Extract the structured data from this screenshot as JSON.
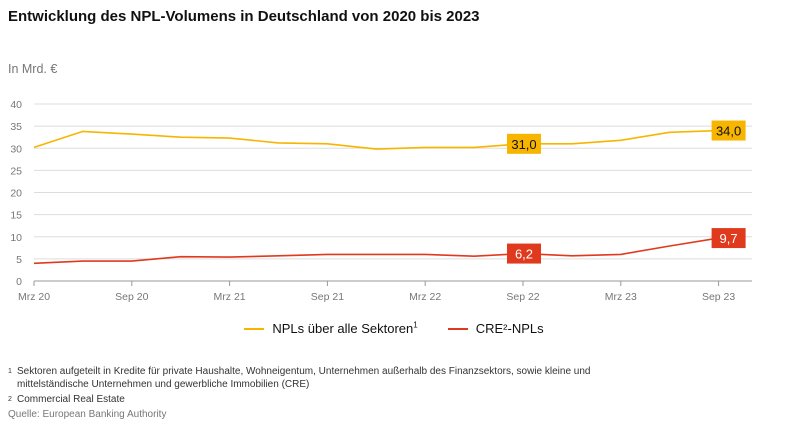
{
  "title": "Entwicklung des NPL-Volumens in Deutschland von 2020 bis 2023",
  "unit_label": "In Mrd. €",
  "colors": {
    "yellow": "#f7b500",
    "red": "#e03a1e",
    "grid": "#dddddd",
    "axis_text": "#777777"
  },
  "chart_data": {
    "type": "line",
    "title": "Entwicklung des NPL-Volumens in Deutschland von 2020 bis 2023",
    "ylabel": "In Mrd. €",
    "xlabel": "",
    "ylim": [
      0,
      40
    ],
    "yticks": [
      "0",
      "5",
      "10",
      "15",
      "20",
      "25",
      "30",
      "35",
      "40"
    ],
    "xticks": [
      "Mrz 20",
      "Sep 20",
      "Mrz 21",
      "Sep 21",
      "Mrz 22",
      "Sep 22",
      "Mrz 23",
      "Sep 23"
    ],
    "x": [
      "Mrz 20",
      "Jun 20",
      "Sep 20",
      "Dez 20",
      "Mrz 21",
      "Jun 21",
      "Sep 21",
      "Dez 21",
      "Mrz 22",
      "Jun 22",
      "Sep 22",
      "Dez 22",
      "Mrz 23",
      "Jun 23",
      "Sep 23"
    ],
    "grid": true,
    "legend_position": "bottom",
    "series": [
      {
        "name": "NPLs über alle Sektoren",
        "superscript": "1",
        "color": "#f7b500",
        "values": [
          30.2,
          33.8,
          33.2,
          32.5,
          32.3,
          31.2,
          31.0,
          29.8,
          30.2,
          30.2,
          31.0,
          31.0,
          31.8,
          33.6,
          34.0
        ],
        "labels": [
          {
            "x": "Sep 22",
            "text": "31,0"
          },
          {
            "x": "Sep 23",
            "text": "34,0"
          }
        ]
      },
      {
        "name": "CRE²-NPLs",
        "superscript": "",
        "color": "#e03a1e",
        "values": [
          4.0,
          4.5,
          4.5,
          5.5,
          5.4,
          5.7,
          6.0,
          6.0,
          6.0,
          5.6,
          6.2,
          5.7,
          6.0,
          7.9,
          9.7
        ],
        "labels": [
          {
            "x": "Sep 22",
            "text": "6,2"
          },
          {
            "x": "Sep 23",
            "text": "9,7"
          }
        ]
      }
    ]
  },
  "footnotes": [
    {
      "number": "1",
      "text": "Sektoren aufgeteilt in Kredite für private Haushalte, Wohneigentum, Unternehmen außerhalb des Finanzsektors, sowie kleine und mittelständische Unternehmen und gewerbliche Immobilien (CRE)"
    },
    {
      "number": "2",
      "text": "Commercial Real Estate"
    }
  ],
  "source": "Quelle: European Banking Authority"
}
